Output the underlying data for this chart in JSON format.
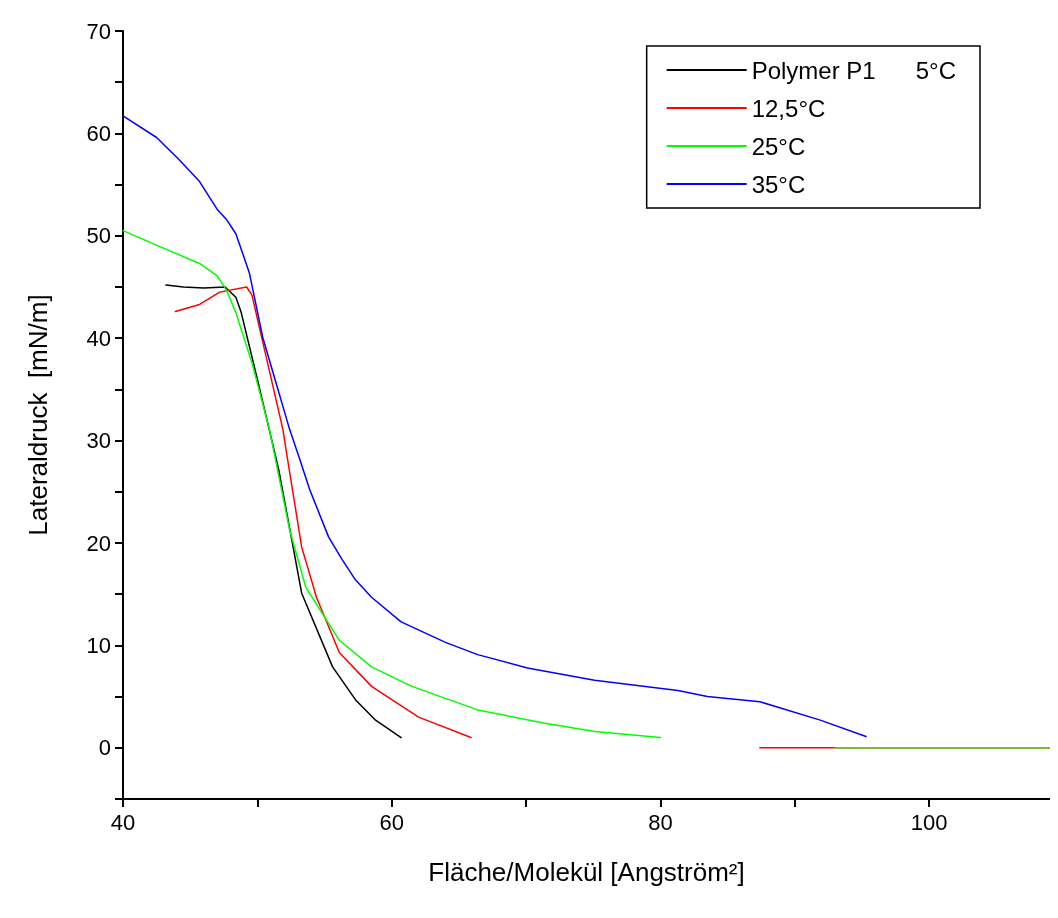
{
  "chart_data": {
    "type": "line",
    "xlabel": "Fläche/Molekül [Angström²]",
    "ylabel": "Lateraldruck  [mN/m]",
    "xlim": [
      40,
      109
    ],
    "xticks": [
      40,
      {
        "value": 50,
        "label": null
      },
      60,
      {
        "value": 70,
        "label": null
      },
      80,
      {
        "value": 90,
        "label": null
      },
      100
    ],
    "ylim": [
      -5,
      70
    ],
    "yticks": [
      {
        "value": -5,
        "label": null
      },
      0,
      {
        "value": 5,
        "label": null
      },
      10,
      {
        "value": 15,
        "label": null
      },
      20,
      {
        "value": 25,
        "label": null
      },
      30,
      {
        "value": 35,
        "label": null
      },
      40,
      {
        "value": 45,
        "label": null
      },
      50,
      {
        "value": 55,
        "label": null
      },
      60,
      {
        "value": 65,
        "label": null
      },
      70
    ],
    "grid": false,
    "legend": "top right",
    "marker": "none",
    "line_style": "solid",
    "series": [
      {
        "name": "Polymer P1      5°C",
        "color": "#000000",
        "x": [
          43.2,
          44.5,
          46,
          47.6,
          48.4,
          48.8,
          50,
          51.6,
          53.3,
          55.6,
          57.3,
          58.8,
          60.7
        ],
        "values": [
          45.2,
          45.0,
          44.9,
          45.0,
          44.0,
          42.5,
          36,
          27.1,
          15.1,
          7.9,
          4.7,
          2.7,
          1.0
        ]
      },
      {
        "name": "12,5°C",
        "color": "#ff0000",
        "x": [
          43.9,
          45.7,
          47.2,
          49.2,
          49.6,
          51.9,
          52.1,
          53.3,
          54.4,
          56.1,
          58.5,
          62.0,
          65.9,
          76,
          87.4,
          95,
          109
        ],
        "values": [
          42.6,
          43.3,
          44.5,
          45.0,
          44.2,
          31.1,
          29.4,
          19.6,
          14.7,
          9.3,
          6.0,
          3.0,
          1.0,
          null,
          0,
          0,
          0
        ]
      },
      {
        "name": "25°C",
        "color": "#00ff00",
        "x": [
          40,
          43.0,
          45.7,
          47.0,
          47.7,
          48.4,
          49.2,
          49.6,
          50.9,
          52.4,
          53.6,
          56.1,
          58.5,
          61.5,
          66.4,
          71.4,
          75.1,
          80.0,
          86,
          93,
          100,
          109
        ],
        "values": [
          50.5,
          48.8,
          47.3,
          46.1,
          44.7,
          42.5,
          39.2,
          37.6,
          31.1,
          21.3,
          15.7,
          10.5,
          7.9,
          6.0,
          3.7,
          2.4,
          1.6,
          1.0,
          null,
          0,
          0,
          0
        ]
      },
      {
        "name": "35°C",
        "color": "#0000ff",
        "x": [
          40,
          42.5,
          44.2,
          45.7,
          47.0,
          47.7,
          48.4,
          49.4,
          50.4,
          51.4,
          52.4,
          53.1,
          53.9,
          55.3,
          56.3,
          57.3,
          58.5,
          60.7,
          64.0,
          66.4,
          70.1,
          75.1,
          81.3,
          83.5,
          87.4,
          91.9,
          95.3
        ],
        "values": [
          61.7,
          59.6,
          57.4,
          55.3,
          52.6,
          51.6,
          50.2,
          46.4,
          40.1,
          35.6,
          31.1,
          28.4,
          25.2,
          20.6,
          18.4,
          16.4,
          14.7,
          12.3,
          10.3,
          9.1,
          7.8,
          6.6,
          5.6,
          5.0,
          4.5,
          2.7,
          1.1
        ]
      }
    ]
  }
}
